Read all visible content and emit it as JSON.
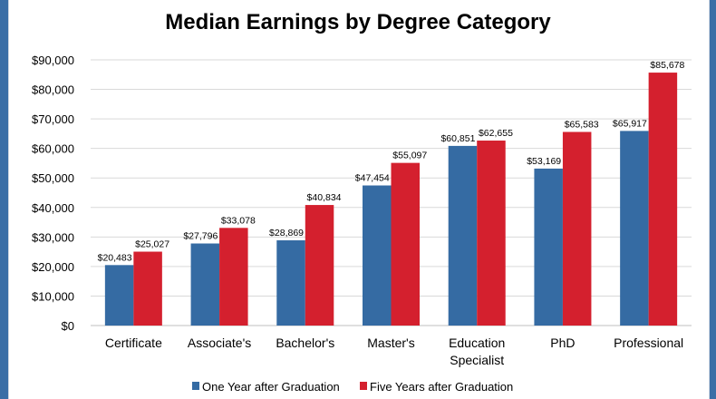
{
  "chart_data": {
    "type": "bar",
    "title": "Median Earnings by Degree Category",
    "categories": [
      "Certificate",
      "Associate's",
      "Bachelor's",
      "Master's",
      "Education\nSpecialist",
      "PhD",
      "Professional"
    ],
    "series": [
      {
        "name": "One Year after Graduation",
        "color": "#356ba3",
        "values": [
          20483,
          27796,
          28869,
          47454,
          60851,
          53169,
          65917
        ],
        "labels": [
          "$20,483",
          "$27,796",
          "$28,869",
          "$47,454",
          "$60,851",
          "$53,169",
          "$65,917"
        ]
      },
      {
        "name": "Five Years after Graduation",
        "color": "#d4202e",
        "values": [
          25027,
          33078,
          40834,
          55097,
          62655,
          65583,
          85678
        ],
        "labels": [
          "$25,027",
          "$33,078",
          "$40,834",
          "$55,097",
          "$62,655",
          "$65,583",
          "$85,678"
        ]
      }
    ],
    "ylim": [
      0,
      90000
    ],
    "yticks": [
      "$0",
      "$10,000",
      "$20,000",
      "$30,000",
      "$40,000",
      "$50,000",
      "$60,000",
      "$70,000",
      "$80,000",
      "$90,000"
    ],
    "grid": true,
    "legend": "bottom"
  }
}
